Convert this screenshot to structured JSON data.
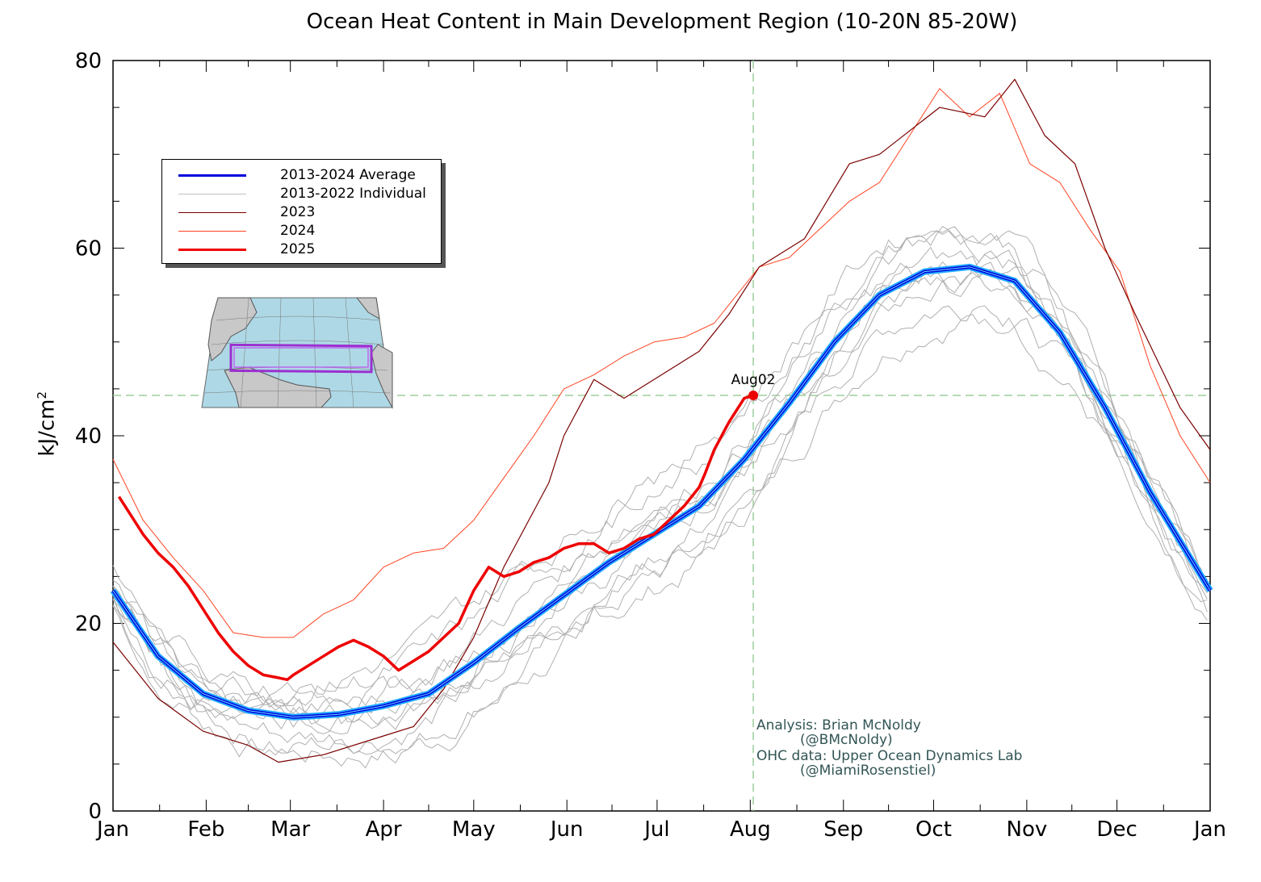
{
  "chart_data": {
    "type": "line",
    "title": "Ocean Heat Content in Main Development Region (10-20N 85-20W)",
    "ylabel": "kJ/cm",
    "ylabel_superscript": "2",
    "ylim": [
      0,
      80
    ],
    "yticks": [
      0,
      20,
      40,
      60,
      80
    ],
    "x_ticks": [
      "Jan",
      "Feb",
      "Mar",
      "Apr",
      "May",
      "Jun",
      "Jul",
      "Aug",
      "Sep",
      "Oct",
      "Nov",
      "Dec",
      "Jan"
    ],
    "x_unit": "day of year",
    "xlim": [
      0,
      365
    ],
    "reference_lines": {
      "vertical_day": 213,
      "horizontal_value": 44.3
    },
    "point_annotation": {
      "label": "Aug02",
      "x": 213,
      "y": 44.3
    },
    "legend": {
      "placement": "upper-left",
      "entries": [
        {
          "label": "2013-2024 Average",
          "color": "#0000dd",
          "width": 3
        },
        {
          "label": "2013-2022 Individual",
          "color": "#c0c0c0",
          "width": 1
        },
        {
          "label": "2023",
          "color": "#7a0000",
          "width": 1
        },
        {
          "label": "2024",
          "color": "#ff4422",
          "width": 1
        },
        {
          "label": "2025",
          "color": "#ee0000",
          "width": 3
        }
      ]
    },
    "series": [
      {
        "name": "2013-2024 Average",
        "color": "#0000dd",
        "x": [
          0,
          15,
          30,
          45,
          60,
          75,
          90,
          105,
          120,
          135,
          150,
          165,
          180,
          195,
          210,
          225,
          240,
          255,
          270,
          285,
          300,
          315,
          330,
          345,
          365
        ],
        "y": [
          23.5,
          16.5,
          12.5,
          10.7,
          10.0,
          10.3,
          11.2,
          12.5,
          15.8,
          19.5,
          23.0,
          26.5,
          29.5,
          32.5,
          37.5,
          43.5,
          50.0,
          55.0,
          57.5,
          58.0,
          56.5,
          51.0,
          43.0,
          34.0,
          23.5
        ]
      },
      {
        "name": "2023",
        "color": "#7a0000",
        "x": [
          0,
          15,
          30,
          45,
          55,
          70,
          90,
          100,
          110,
          120,
          130,
          140,
          145,
          150,
          160,
          170,
          185,
          195,
          205,
          215,
          230,
          245,
          255,
          265,
          275,
          290,
          300,
          310,
          320,
          330,
          340,
          355,
          365
        ],
        "y": [
          18.0,
          12.0,
          8.5,
          7.0,
          5.2,
          6.0,
          8.0,
          9.0,
          13.0,
          18.5,
          26.0,
          32.0,
          35.0,
          40.0,
          46.0,
          44.0,
          47.0,
          49.0,
          53.0,
          58.0,
          61.0,
          69.0,
          70.0,
          72.5,
          75.0,
          74.0,
          78.0,
          72.0,
          69.0,
          60.0,
          53.0,
          43.0,
          38.5
        ]
      },
      {
        "name": "2024",
        "color": "#ff4422",
        "x": [
          0,
          10,
          20,
          30,
          40,
          50,
          60,
          70,
          80,
          90,
          100,
          110,
          120,
          130,
          140,
          150,
          160,
          170,
          180,
          190,
          200,
          210,
          215,
          225,
          235,
          245,
          255,
          265,
          275,
          285,
          295,
          305,
          315,
          325,
          335,
          345,
          355,
          365
        ],
        "y": [
          37.5,
          31.0,
          27.0,
          23.5,
          19.0,
          18.5,
          18.5,
          21.0,
          22.5,
          26.0,
          27.5,
          28.0,
          31.0,
          35.5,
          40.0,
          45.0,
          46.5,
          48.5,
          50.0,
          50.5,
          52.0,
          56.0,
          58.0,
          59.0,
          62.0,
          65.0,
          67.0,
          72.0,
          77.0,
          74.0,
          76.5,
          69.0,
          67.0,
          62.0,
          57.5,
          47.5,
          40.0,
          35.0
        ]
      },
      {
        "name": "2025",
        "color": "#ee0000",
        "x": [
          2,
          5,
          10,
          15,
          20,
          25,
          30,
          35,
          40,
          45,
          50,
          55,
          58,
          60,
          65,
          70,
          75,
          80,
          85,
          90,
          95,
          100,
          105,
          110,
          115,
          120,
          125,
          130,
          135,
          140,
          145,
          150,
          155,
          160,
          165,
          170,
          175,
          180,
          185,
          190,
          195,
          197,
          200,
          205,
          210,
          213
        ],
        "y": [
          33.5,
          32.0,
          29.5,
          27.5,
          26.0,
          24.0,
          21.5,
          19.0,
          17.0,
          15.5,
          14.5,
          14.2,
          14.0,
          14.5,
          15.5,
          16.5,
          17.5,
          18.2,
          17.5,
          16.5,
          15.0,
          16.0,
          17.0,
          18.5,
          20.0,
          23.5,
          26.0,
          25.0,
          25.5,
          26.5,
          27.0,
          28.0,
          28.5,
          28.5,
          27.5,
          28.0,
          29.0,
          29.5,
          31.0,
          32.5,
          34.5,
          36.0,
          38.5,
          41.5,
          44.0,
          44.3
        ]
      }
    ],
    "individual_years_range": {
      "name": "2013-2022 Individual",
      "color": "#b0b0b0",
      "count": 10
    }
  },
  "credit": {
    "line1": "Analysis: Brian McNoldy",
    "line2": "          (@BMcNoldy)",
    "line3": "OHC data: Upper Ocean Dynamics Lab",
    "line4": "          (@MiamiRosenstiel)"
  },
  "map": {
    "region_box_color": "#9b30d0",
    "ocean_color": "#aed8e6",
    "land_color": "#c8c8c8"
  }
}
